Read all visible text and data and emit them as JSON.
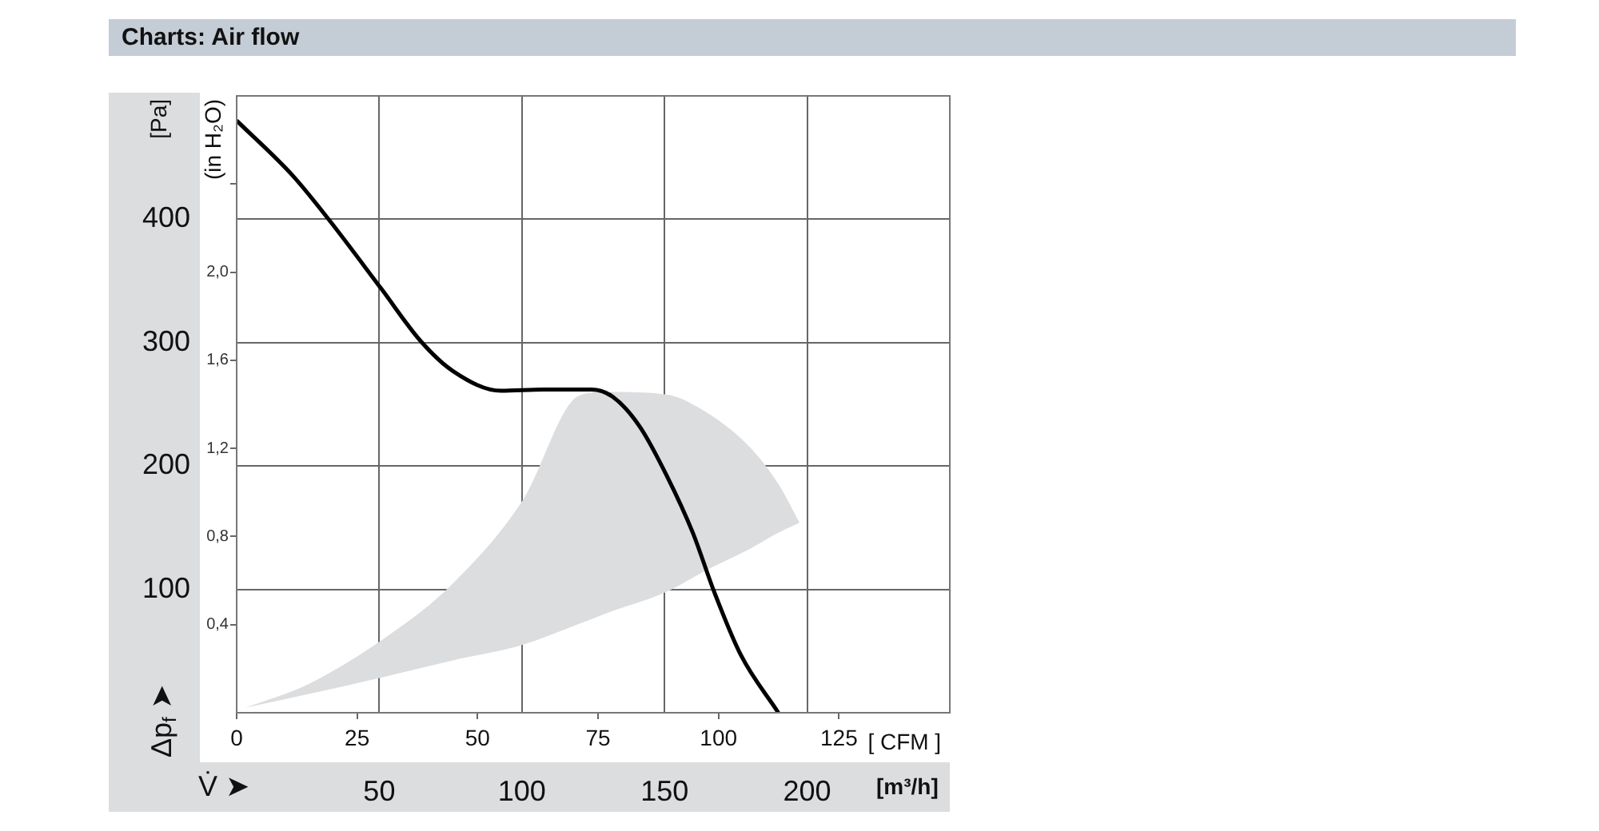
{
  "chart_data": {
    "type": "line",
    "title": "Charts: Air flow",
    "xlabel": "[m³/h]",
    "x2label": "[ CFM ]",
    "ylabel": "[Pa]",
    "y2label": "(in H₂O)",
    "annotations": [
      "Δp$_{f}$ ➤",
      "V̇ ➤"
    ],
    "xlim": [
      0,
      250
    ],
    "xticks": [
      50,
      100,
      150,
      200
    ],
    "x2lim": [
      0,
      148
    ],
    "x2ticks": [
      0,
      25,
      50,
      75,
      100,
      125
    ],
    "ylim": [
      0,
      500
    ],
    "yticks": [
      100,
      200,
      300,
      400
    ],
    "y2lim": [
      0,
      2.8
    ],
    "y2ticks": [
      {
        "value": 0.4,
        "label": "0,4"
      },
      {
        "value": 0.8,
        "label": "0,8"
      },
      {
        "value": 1.2,
        "label": "1,2"
      },
      {
        "value": 1.6,
        "label": "1,6"
      },
      {
        "value": 2.0,
        "label": "2,0"
      },
      {
        "value": 2.4,
        "label": null
      }
    ],
    "grid": true,
    "legend": false,
    "marker": "none",
    "line_style": "solid",
    "series": [
      {
        "type": "line",
        "color": "#dcdddf",
        "x": [
          3,
          25,
          51.6,
          75,
          100.2,
          120,
          130,
          150.6,
          165,
          180,
          190,
          197.3
        ],
        "values": [
          null,
          null,
          null,
          null,
          null,
          null,
          null,
          null,
          null,
          null,
          null,
          null
        ],
        "lower": [
          4,
          15,
          29,
          42,
          55,
          72,
          81,
          98,
          116,
          133,
          146,
          154
        ],
        "upper": [
          4,
          23,
          60,
          103,
          172,
          257,
          260,
          258,
          243,
          215,
          185,
          154
        ]
      },
      {
        "color": "#000000",
        "x": [
          0,
          19.8,
          32.9,
          50.6,
          64.6,
          75.8,
          92.7,
          107.6,
          124.4,
          131.9,
          141.3,
          150.6,
          159.9,
          167.4,
          176.7,
          189.9
        ],
        "values": [
          480,
          435,
          398,
          344,
          301,
          277,
          261,
          262,
          262,
          256,
          232,
          193,
          146,
          98,
          47,
          0
        ]
      }
    ]
  }
}
